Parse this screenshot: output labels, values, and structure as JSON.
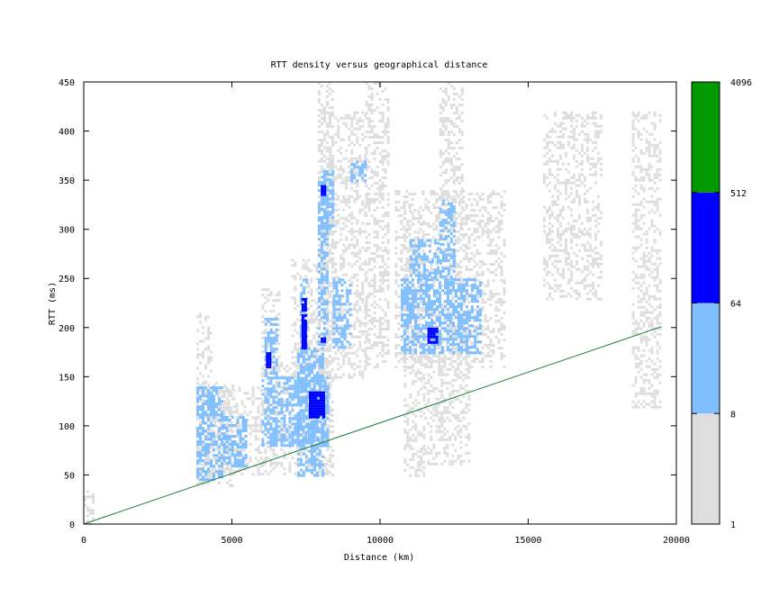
{
  "chart_data": {
    "type": "heatmap",
    "title": "RTT density versus geographical distance",
    "xlabel": "Distance (km)",
    "ylabel": "RTT (ms)",
    "xlim": [
      0,
      20000
    ],
    "ylim": [
      0,
      450
    ],
    "x_ticks": [
      0,
      5000,
      10000,
      15000,
      20000
    ],
    "y_ticks": [
      0,
      50,
      100,
      150,
      200,
      250,
      300,
      350,
      400,
      450
    ],
    "grid": false,
    "legend": "colorbar-right",
    "colorbar": {
      "scale": "log",
      "ticks": [
        "1",
        "8",
        "64",
        "512",
        "4096"
      ],
      "bands": [
        {
          "from": 1,
          "to": 8,
          "color": "#dedede"
        },
        {
          "from": 8,
          "to": 64,
          "color": "#80bfff"
        },
        {
          "from": 64,
          "to": 512,
          "color": "#0000ff"
        },
        {
          "from": 512,
          "to": 4096,
          "color": "#009900"
        }
      ]
    },
    "reference_line": {
      "x": [
        0,
        19500
      ],
      "y": [
        0,
        201
      ],
      "color": "#1d7a3e"
    },
    "density_regions": [
      {
        "level": 1,
        "x": [
          3800,
          4300
        ],
        "y": [
          40,
          215
        ]
      },
      {
        "level": 1,
        "x": [
          3800,
          5000
        ],
        "y": [
          40,
          145
        ]
      },
      {
        "level": 1,
        "x": [
          4300,
          6000
        ],
        "y": [
          50,
          140
        ]
      },
      {
        "level": 1,
        "x": [
          6000,
          8300
        ],
        "y": [
          50,
          165
        ]
      },
      {
        "level": 1,
        "x": [
          6000,
          6600
        ],
        "y": [
          150,
          240
        ]
      },
      {
        "level": 1,
        "x": [
          7000,
          8000
        ],
        "y": [
          160,
          270
        ]
      },
      {
        "level": 1,
        "x": [
          7900,
          8400
        ],
        "y": [
          50,
          450
        ]
      },
      {
        "level": 1,
        "x": [
          8000,
          9500
        ],
        "y": [
          150,
          420
        ]
      },
      {
        "level": 1,
        "x": [
          9500,
          10300
        ],
        "y": [
          160,
          450
        ]
      },
      {
        "level": 1,
        "x": [
          10500,
          14200
        ],
        "y": [
          160,
          340
        ]
      },
      {
        "level": 1,
        "x": [
          10800,
          11500
        ],
        "y": [
          50,
          320
        ]
      },
      {
        "level": 1,
        "x": [
          11500,
          13000
        ],
        "y": [
          60,
          200
        ]
      },
      {
        "level": 1,
        "x": [
          12000,
          12800
        ],
        "y": [
          300,
          450
        ]
      },
      {
        "level": 1,
        "x": [
          15500,
          17500
        ],
        "y": [
          230,
          420
        ]
      },
      {
        "level": 1,
        "x": [
          18500,
          19500
        ],
        "y": [
          120,
          420
        ]
      },
      {
        "level": 1,
        "x": [
          0,
          300
        ],
        "y": [
          0,
          40
        ]
      },
      {
        "level": 8,
        "x": [
          3800,
          4700
        ],
        "y": [
          45,
          140
        ]
      },
      {
        "level": 8,
        "x": [
          4700,
          5500
        ],
        "y": [
          60,
          110
        ]
      },
      {
        "level": 8,
        "x": [
          6000,
          8200
        ],
        "y": [
          80,
          150
        ]
      },
      {
        "level": 8,
        "x": [
          6100,
          6500
        ],
        "y": [
          150,
          210
        ]
      },
      {
        "level": 8,
        "x": [
          7200,
          8100
        ],
        "y": [
          50,
          180
        ]
      },
      {
        "level": 8,
        "x": [
          7300,
          7500
        ],
        "y": [
          170,
          250
        ]
      },
      {
        "level": 8,
        "x": [
          7900,
          8200
        ],
        "y": [
          180,
          360
        ]
      },
      {
        "level": 8,
        "x": [
          8000,
          8400
        ],
        "y": [
          300,
          360
        ]
      },
      {
        "level": 8,
        "x": [
          8400,
          9000
        ],
        "y": [
          180,
          250
        ]
      },
      {
        "level": 8,
        "x": [
          9000,
          9500
        ],
        "y": [
          350,
          370
        ]
      },
      {
        "level": 8,
        "x": [
          10700,
          13400
        ],
        "y": [
          175,
          250
        ]
      },
      {
        "level": 8,
        "x": [
          11000,
          12000
        ],
        "y": [
          250,
          290
        ]
      },
      {
        "level": 8,
        "x": [
          12000,
          12500
        ],
        "y": [
          250,
          330
        ]
      },
      {
        "level": 64,
        "x": [
          6150,
          6250
        ],
        "y": [
          160,
          175
        ]
      },
      {
        "level": 64,
        "x": [
          7350,
          7450
        ],
        "y": [
          180,
          230
        ]
      },
      {
        "level": 64,
        "x": [
          7600,
          8100
        ],
        "y": [
          110,
          135
        ]
      },
      {
        "level": 64,
        "x": [
          8000,
          8150
        ],
        "y": [
          185,
          190
        ]
      },
      {
        "level": 64,
        "x": [
          8000,
          8150
        ],
        "y": [
          335,
          345
        ]
      },
      {
        "level": 64,
        "x": [
          11600,
          11900
        ],
        "y": [
          185,
          200
        ]
      }
    ]
  }
}
